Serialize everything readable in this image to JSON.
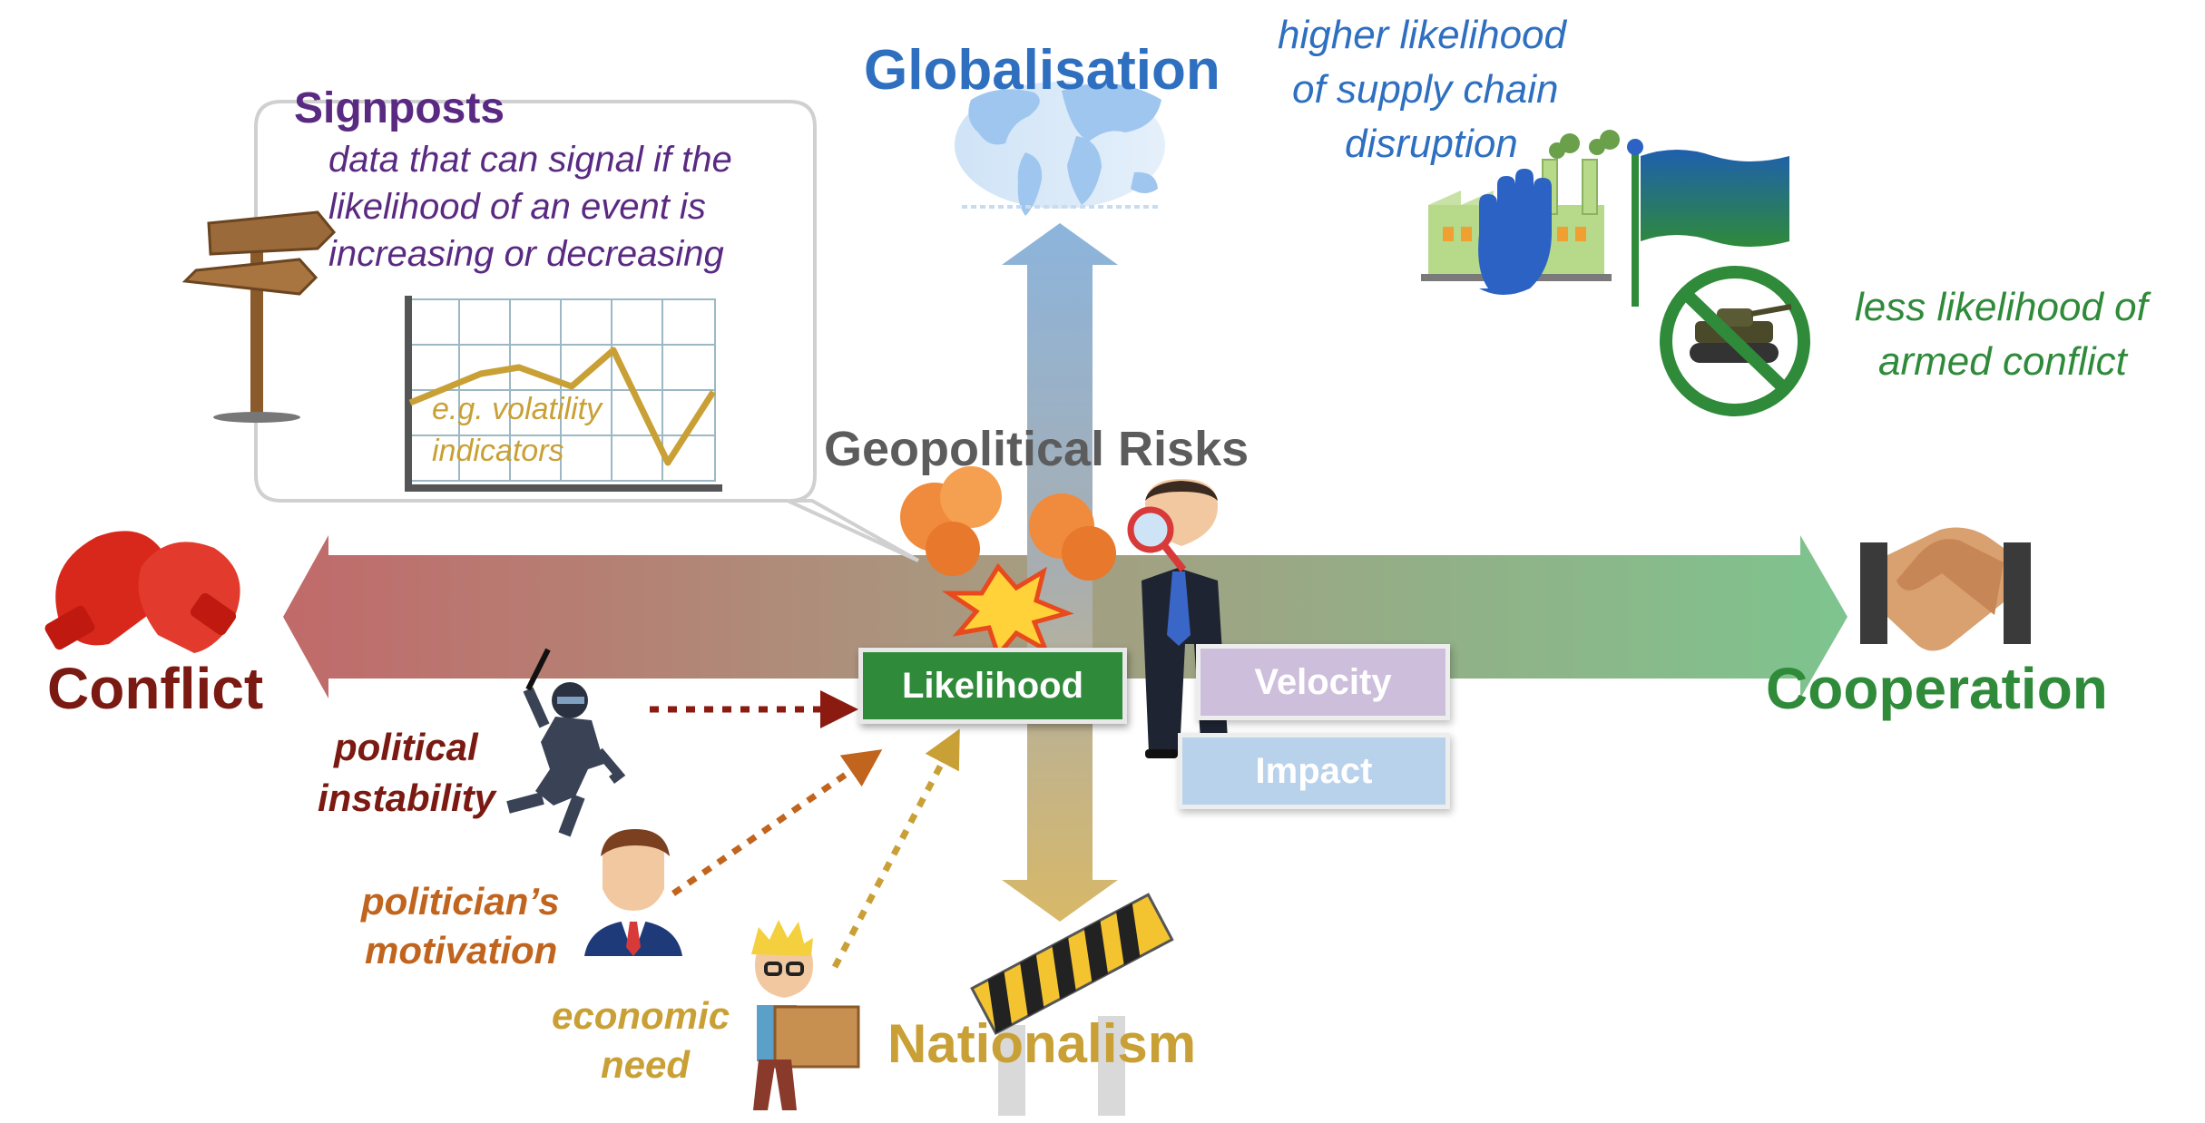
{
  "axes": {
    "top": "Globalisation",
    "bottom": "Nationalism",
    "left": "Conflict",
    "right": "Cooperation"
  },
  "center_title": "Geopolitical Risks",
  "boxes": {
    "likelihood": "Likelihood",
    "velocity": "Velocity",
    "impact": "Impact"
  },
  "signposts": {
    "title": "Signposts",
    "description": [
      "data that can signal if the",
      "likelihood of an event is",
      "increasing or decreasing"
    ],
    "example": [
      "e.g. volatility",
      "indicators"
    ]
  },
  "globalisation_effects": {
    "supply_chain": [
      "higher likelihood",
      "of supply chain",
      "disruption"
    ],
    "armed_conflict": [
      "less likelihood of",
      "armed conflict"
    ]
  },
  "drivers": {
    "political_instability": [
      "political",
      "instability"
    ],
    "politicians_motivation": [
      "politician’s",
      "motivation"
    ],
    "economic_need": [
      "economic",
      "need"
    ]
  },
  "colors": {
    "conflict": "#7a1a12",
    "cooperation": "#2f8a3a",
    "globalisation": "#2e6fc0",
    "nationalism": "#c9a035",
    "signposts": "#5a2a82",
    "center_title": "#5c5c5c",
    "likelihood_box": "#2f8a3a",
    "velocity_box": "#cdbfdc",
    "impact_box": "#b8d2ec",
    "politician_text": "#c0641e",
    "economic_text": "#c9a035",
    "supply_chain_text": "#2e6fc0",
    "armed_conflict_text": "#2f8a3a"
  },
  "icons": {
    "left": "boxing-gloves-icon",
    "right": "handshake-icon",
    "top": "world-map-icon",
    "bottom": "road-barrier-icon",
    "signpost": "signpost-icon",
    "chart": "line-chart-icon",
    "factory": "factory-stop-icon",
    "flag": "flag-icon",
    "tank": "no-tank-icon",
    "explosion": "explosion-icon",
    "analyst": "businessman-magnifier-icon",
    "rioter": "riot-officer-icon",
    "politician": "politician-icon",
    "worker": "worker-carrying-box-icon"
  }
}
